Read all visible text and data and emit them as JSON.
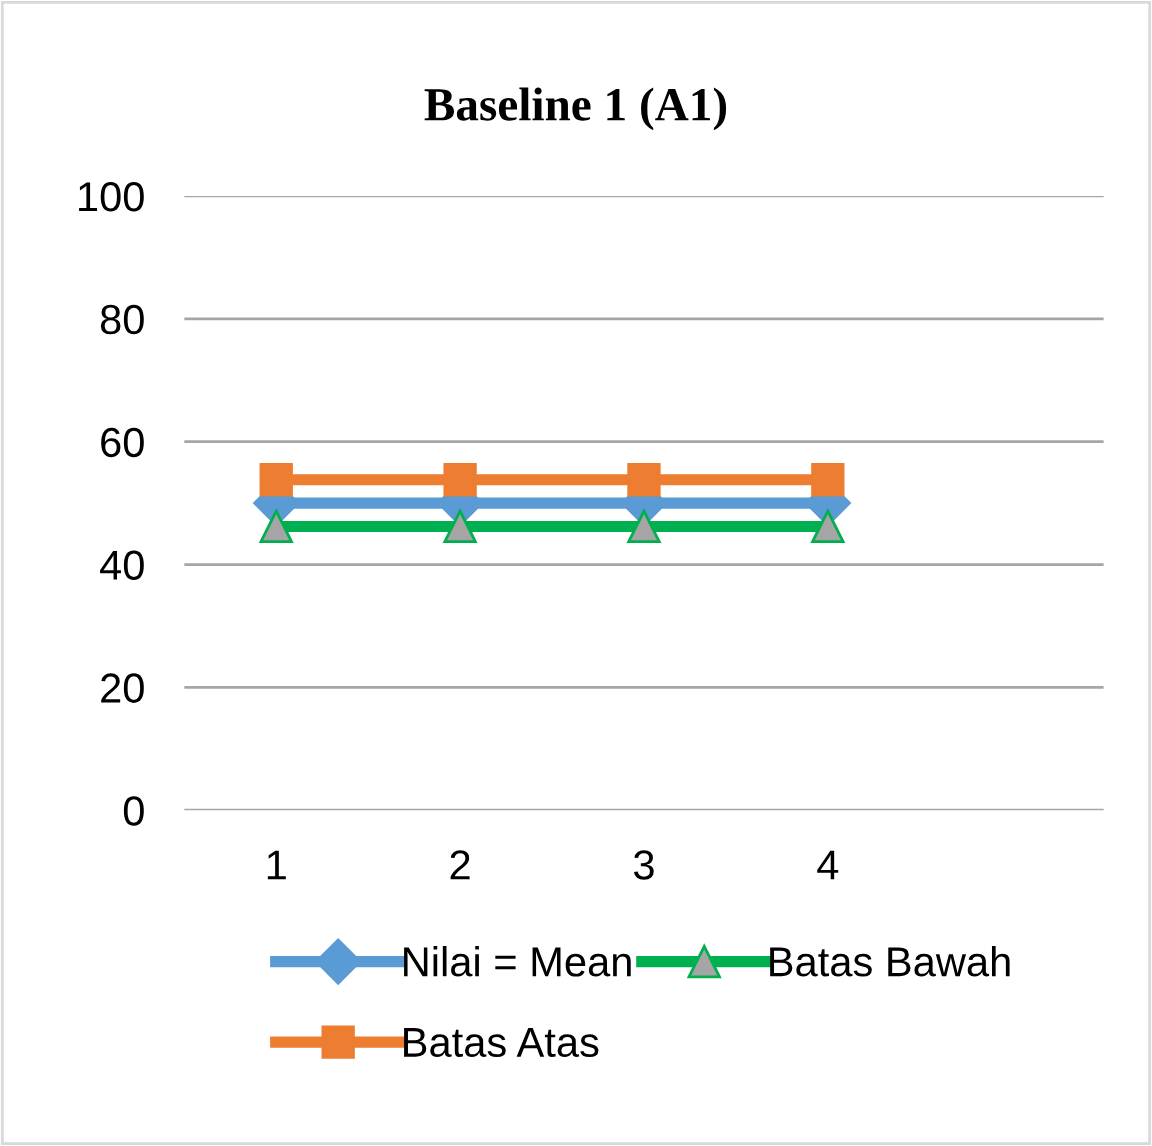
{
  "chart_data": {
    "type": "line",
    "title": "Baseline 1 (A1)",
    "categories": [
      "1",
      "2",
      "3",
      "4",
      null
    ],
    "series": [
      {
        "name": "Nilai = Mean",
        "color": "#5b9bd5",
        "values": [
          50,
          50,
          50,
          50,
          null
        ],
        "marker": "diamond"
      },
      {
        "name": "Batas Atas",
        "color": "#ed7d31",
        "values": [
          53.8,
          53.8,
          53.8,
          53.8,
          null
        ],
        "marker": "square"
      },
      {
        "name": "Batas Bawah",
        "color": "#00b050",
        "values": [
          46.2,
          46.2,
          46.2,
          46.2,
          null
        ],
        "marker": "triangle"
      }
    ],
    "ylim": [
      0,
      100
    ],
    "yticks": [
      0,
      20,
      40,
      60,
      80,
      100
    ],
    "grid": "y",
    "legend": "bottom"
  }
}
